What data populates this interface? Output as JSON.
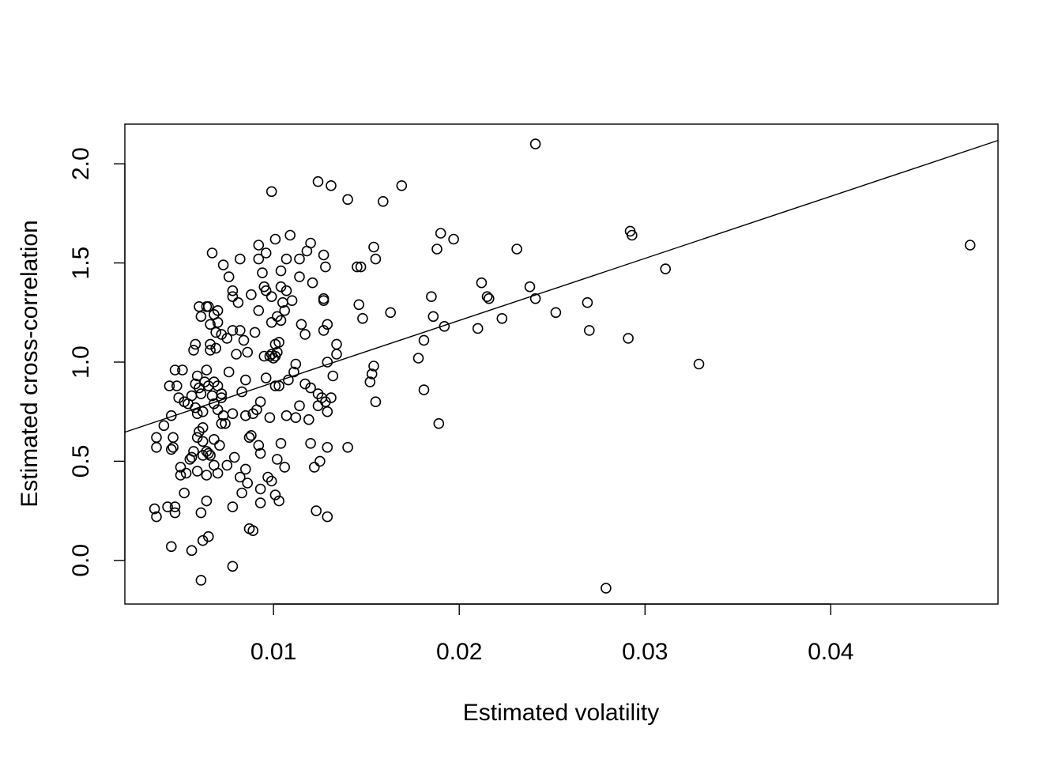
{
  "chart_data": {
    "type": "scatter",
    "title": "",
    "xlabel": "Estimated volatility",
    "ylabel": "Estimated cross-correlation",
    "xlim": [
      0.002,
      0.049
    ],
    "ylim": [
      -0.22,
      2.2
    ],
    "x_ticks": [
      0.01,
      0.02,
      0.03,
      0.04
    ],
    "x_tick_labels": [
      "0.01",
      "0.02",
      "0.03",
      "0.04"
    ],
    "y_ticks": [
      0.0,
      0.5,
      1.0,
      1.5,
      2.0
    ],
    "y_tick_labels": [
      "0.0",
      "0.5",
      "1.0",
      "1.5",
      "2.0"
    ],
    "grid": false,
    "legend": "none",
    "regression_line": {
      "intercept": 0.584,
      "slope": 31.3
    },
    "points": [
      [
        0.0241,
        2.1
      ],
      [
        0.0124,
        1.91
      ],
      [
        0.0131,
        1.89
      ],
      [
        0.0169,
        1.89
      ],
      [
        0.0099,
        1.86
      ],
      [
        0.014,
        1.82
      ],
      [
        0.0159,
        1.81
      ],
      [
        0.0475,
        1.59
      ],
      [
        0.019,
        1.65
      ],
      [
        0.0292,
        1.66
      ],
      [
        0.0293,
        1.64
      ],
      [
        0.0197,
        1.62
      ],
      [
        0.0109,
        1.64
      ],
      [
        0.0101,
        1.62
      ],
      [
        0.012,
        1.6
      ],
      [
        0.0092,
        1.59
      ],
      [
        0.0154,
        1.58
      ],
      [
        0.0188,
        1.57
      ],
      [
        0.0231,
        1.57
      ],
      [
        0.0067,
        1.55
      ],
      [
        0.0096,
        1.55
      ],
      [
        0.0118,
        1.56
      ],
      [
        0.0127,
        1.54
      ],
      [
        0.0107,
        1.52
      ],
      [
        0.0114,
        1.52
      ],
      [
        0.0155,
        1.52
      ],
      [
        0.0082,
        1.52
      ],
      [
        0.0092,
        1.52
      ],
      [
        0.0073,
        1.49
      ],
      [
        0.0145,
        1.48
      ],
      [
        0.0147,
        1.48
      ],
      [
        0.0128,
        1.48
      ],
      [
        0.0311,
        1.47
      ],
      [
        0.0104,
        1.46
      ],
      [
        0.0094,
        1.45
      ],
      [
        0.0114,
        1.43
      ],
      [
        0.0076,
        1.43
      ],
      [
        0.0121,
        1.4
      ],
      [
        0.0212,
        1.4
      ],
      [
        0.0238,
        1.38
      ],
      [
        0.0095,
        1.38
      ],
      [
        0.0104,
        1.38
      ],
      [
        0.0096,
        1.36
      ],
      [
        0.0107,
        1.36
      ],
      [
        0.0078,
        1.36
      ],
      [
        0.0088,
        1.34
      ],
      [
        0.0078,
        1.33
      ],
      [
        0.0099,
        1.33
      ],
      [
        0.0185,
        1.33
      ],
      [
        0.0215,
        1.33
      ],
      [
        0.0216,
        1.32
      ],
      [
        0.0241,
        1.32
      ],
      [
        0.0127,
        1.32
      ],
      [
        0.011,
        1.31
      ],
      [
        0.0127,
        1.31
      ],
      [
        0.0081,
        1.3
      ],
      [
        0.0105,
        1.3
      ],
      [
        0.0269,
        1.3
      ],
      [
        0.0146,
        1.29
      ],
      [
        0.006,
        1.28
      ],
      [
        0.0064,
        1.28
      ],
      [
        0.0065,
        1.28
      ],
      [
        0.0092,
        1.26
      ],
      [
        0.0106,
        1.26
      ],
      [
        0.007,
        1.26
      ],
      [
        0.0068,
        1.24
      ],
      [
        0.0163,
        1.25
      ],
      [
        0.0252,
        1.25
      ],
      [
        0.0061,
        1.23
      ],
      [
        0.0102,
        1.23
      ],
      [
        0.0186,
        1.23
      ],
      [
        0.0223,
        1.22
      ],
      [
        0.0148,
        1.22
      ],
      [
        0.007,
        1.2
      ],
      [
        0.0099,
        1.2
      ],
      [
        0.0104,
        1.21
      ],
      [
        0.0066,
        1.19
      ],
      [
        0.0115,
        1.19
      ],
      [
        0.0129,
        1.19
      ],
      [
        0.0192,
        1.18
      ],
      [
        0.021,
        1.17
      ],
      [
        0.0082,
        1.16
      ],
      [
        0.009,
        1.15
      ],
      [
        0.0078,
        1.16
      ],
      [
        0.0127,
        1.16
      ],
      [
        0.027,
        1.16
      ],
      [
        0.0069,
        1.15
      ],
      [
        0.0072,
        1.14
      ],
      [
        0.0117,
        1.14
      ],
      [
        0.0075,
        1.12
      ],
      [
        0.0291,
        1.12
      ],
      [
        0.0084,
        1.11
      ],
      [
        0.0181,
        1.11
      ],
      [
        0.0101,
        1.09
      ],
      [
        0.0134,
        1.09
      ],
      [
        0.0058,
        1.09
      ],
      [
        0.0066,
        1.09
      ],
      [
        0.0103,
        1.1
      ],
      [
        0.0069,
        1.07
      ],
      [
        0.0057,
        1.06
      ],
      [
        0.008,
        1.04
      ],
      [
        0.0102,
        1.05
      ],
      [
        0.0099,
        1.04
      ],
      [
        0.0066,
        1.06
      ],
      [
        0.0086,
        1.05
      ],
      [
        0.0095,
        1.03
      ],
      [
        0.0098,
        1.03
      ],
      [
        0.0101,
        1.03
      ],
      [
        0.01,
        1.02
      ],
      [
        0.0134,
        1.04
      ],
      [
        0.0178,
        1.02
      ],
      [
        0.0129,
        1.0
      ],
      [
        0.0112,
        0.99
      ],
      [
        0.0329,
        0.99
      ],
      [
        0.0154,
        0.98
      ],
      [
        0.0064,
        0.96
      ],
      [
        0.0051,
        0.96
      ],
      [
        0.0047,
        0.96
      ],
      [
        0.0076,
        0.95
      ],
      [
        0.0111,
        0.95
      ],
      [
        0.0153,
        0.94
      ],
      [
        0.0132,
        0.93
      ],
      [
        0.0059,
        0.93
      ],
      [
        0.0096,
        0.92
      ],
      [
        0.0108,
        0.91
      ],
      [
        0.0063,
        0.9
      ],
      [
        0.0068,
        0.9
      ],
      [
        0.0058,
        0.89
      ],
      [
        0.0085,
        0.91
      ],
      [
        0.0117,
        0.89
      ],
      [
        0.0152,
        0.9
      ],
      [
        0.0065,
        0.88
      ],
      [
        0.007,
        0.88
      ],
      [
        0.0101,
        0.88
      ],
      [
        0.0103,
        0.88
      ],
      [
        0.0044,
        0.88
      ],
      [
        0.0048,
        0.88
      ],
      [
        0.006,
        0.87
      ],
      [
        0.012,
        0.87
      ],
      [
        0.0083,
        0.85
      ],
      [
        0.0061,
        0.84
      ],
      [
        0.0072,
        0.84
      ],
      [
        0.0181,
        0.86
      ],
      [
        0.0124,
        0.84
      ],
      [
        0.0067,
        0.83
      ],
      [
        0.0056,
        0.83
      ],
      [
        0.0049,
        0.82
      ],
      [
        0.0072,
        0.82
      ],
      [
        0.0126,
        0.82
      ],
      [
        0.0131,
        0.82
      ],
      [
        0.0052,
        0.8
      ],
      [
        0.0128,
        0.8
      ],
      [
        0.0155,
        0.8
      ],
      [
        0.0093,
        0.8
      ],
      [
        0.0054,
        0.79
      ],
      [
        0.0068,
        0.79
      ],
      [
        0.0124,
        0.78
      ],
      [
        0.0114,
        0.78
      ],
      [
        0.0058,
        0.77
      ],
      [
        0.0091,
        0.76
      ],
      [
        0.007,
        0.76
      ],
      [
        0.0062,
        0.75
      ],
      [
        0.0129,
        0.75
      ],
      [
        0.0089,
        0.74
      ],
      [
        0.0078,
        0.74
      ],
      [
        0.0059,
        0.74
      ],
      [
        0.0073,
        0.73
      ],
      [
        0.0085,
        0.73
      ],
      [
        0.0107,
        0.73
      ],
      [
        0.0098,
        0.72
      ],
      [
        0.0112,
        0.72
      ],
      [
        0.0045,
        0.73
      ],
      [
        0.0119,
        0.71
      ],
      [
        0.0072,
        0.69
      ],
      [
        0.0074,
        0.69
      ],
      [
        0.0041,
        0.68
      ],
      [
        0.0062,
        0.67
      ],
      [
        0.0189,
        0.69
      ],
      [
        0.006,
        0.65
      ],
      [
        0.0087,
        0.62
      ],
      [
        0.0088,
        0.63
      ],
      [
        0.0059,
        0.62
      ],
      [
        0.0037,
        0.62
      ],
      [
        0.0046,
        0.62
      ],
      [
        0.0068,
        0.61
      ],
      [
        0.0062,
        0.6
      ],
      [
        0.0071,
        0.58
      ],
      [
        0.0092,
        0.58
      ],
      [
        0.0104,
        0.59
      ],
      [
        0.012,
        0.59
      ],
      [
        0.0129,
        0.57
      ],
      [
        0.014,
        0.57
      ],
      [
        0.0037,
        0.57
      ],
      [
        0.0046,
        0.57
      ],
      [
        0.0045,
        0.56
      ],
      [
        0.0057,
        0.55
      ],
      [
        0.0064,
        0.55
      ],
      [
        0.0065,
        0.54
      ],
      [
        0.0066,
        0.53
      ],
      [
        0.0093,
        0.54
      ],
      [
        0.0062,
        0.53
      ],
      [
        0.0079,
        0.52
      ],
      [
        0.0056,
        0.52
      ],
      [
        0.0055,
        0.51
      ],
      [
        0.0102,
        0.51
      ],
      [
        0.0125,
        0.5
      ],
      [
        0.0068,
        0.48
      ],
      [
        0.0075,
        0.48
      ],
      [
        0.0122,
        0.47
      ],
      [
        0.005,
        0.47
      ],
      [
        0.0106,
        0.47
      ],
      [
        0.0085,
        0.46
      ],
      [
        0.0059,
        0.45
      ],
      [
        0.0053,
        0.44
      ],
      [
        0.007,
        0.44
      ],
      [
        0.005,
        0.43
      ],
      [
        0.0064,
        0.43
      ],
      [
        0.0082,
        0.42
      ],
      [
        0.0097,
        0.42
      ],
      [
        0.0099,
        0.4
      ],
      [
        0.0086,
        0.39
      ],
      [
        0.0093,
        0.36
      ],
      [
        0.0052,
        0.34
      ],
      [
        0.0083,
        0.34
      ],
      [
        0.0101,
        0.33
      ],
      [
        0.0064,
        0.3
      ],
      [
        0.0103,
        0.3
      ],
      [
        0.0093,
        0.29
      ],
      [
        0.0043,
        0.27
      ],
      [
        0.0047,
        0.27
      ],
      [
        0.0078,
        0.27
      ],
      [
        0.0036,
        0.26
      ],
      [
        0.0123,
        0.25
      ],
      [
        0.0061,
        0.24
      ],
      [
        0.0047,
        0.24
      ],
      [
        0.0037,
        0.22
      ],
      [
        0.0129,
        0.22
      ],
      [
        0.0087,
        0.16
      ],
      [
        0.0089,
        0.15
      ],
      [
        0.0065,
        0.12
      ],
      [
        0.0062,
        0.1
      ],
      [
        0.0045,
        0.07
      ],
      [
        0.0056,
        0.05
      ],
      [
        0.0078,
        -0.03
      ],
      [
        0.0061,
        -0.1
      ],
      [
        0.0279,
        -0.14
      ]
    ]
  }
}
